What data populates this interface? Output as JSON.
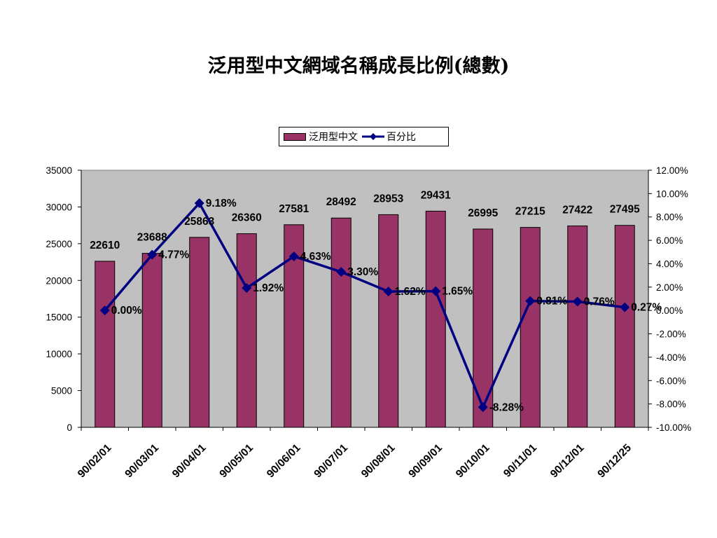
{
  "chart_data": {
    "type": "bar",
    "title": "泛用型中文網域名稱成長比例(總數)",
    "categories": [
      "90/02/01",
      "90/03/01",
      "90/04/01",
      "90/05/01",
      "90/06/01",
      "90/07/01",
      "90/08/01",
      "90/09/01",
      "90/10/01",
      "90/11/01",
      "90/12/01",
      "90/12/25"
    ],
    "series": [
      {
        "name": "泛用型中文",
        "type": "bar",
        "axis": "left",
        "color": "#993366",
        "values": [
          22610,
          23688,
          25863,
          26360,
          27581,
          28492,
          28953,
          29431,
          26995,
          27215,
          27422,
          27495
        ],
        "labels": [
          "22610",
          "23688",
          "25863",
          "26360",
          "27581",
          "28492",
          "28953",
          "29431",
          "26995",
          "27215",
          "27422",
          "27495"
        ]
      },
      {
        "name": "百分比",
        "type": "line",
        "axis": "right",
        "color": "#000080",
        "marker": "diamond",
        "values": [
          0.0,
          4.77,
          9.18,
          1.92,
          4.63,
          3.3,
          1.62,
          1.65,
          -8.28,
          0.81,
          0.76,
          0.27
        ],
        "labels": [
          "0.00%",
          "4.77%",
          "9.18%",
          "1.92%",
          "4.63%",
          "3.30%",
          "1.62%",
          "1.65%",
          "-8.28%",
          "0.81%",
          "0.76%",
          "0.27%"
        ]
      }
    ],
    "y_left": {
      "range": [
        0,
        35000
      ],
      "ticks": [
        0,
        5000,
        10000,
        15000,
        20000,
        25000,
        30000,
        35000
      ],
      "tick_labels": [
        "0",
        "5000",
        "10000",
        "15000",
        "20000",
        "25000",
        "30000",
        "35000"
      ]
    },
    "y_right": {
      "range": [
        -10,
        12
      ],
      "ticks": [
        -10,
        -8,
        -6,
        -4,
        -2,
        0,
        2,
        4,
        6,
        8,
        10,
        12
      ],
      "tick_labels": [
        "-10.00%",
        "-8.00%",
        "-6.00%",
        "-4.00%",
        "-2.00%",
        "0.00%",
        "2.00%",
        "4.00%",
        "6.00%",
        "8.00%",
        "10.00%",
        "12.00%"
      ]
    },
    "legend_position": "top-center",
    "plot_background": "#c0c0c0",
    "grid": false
  }
}
